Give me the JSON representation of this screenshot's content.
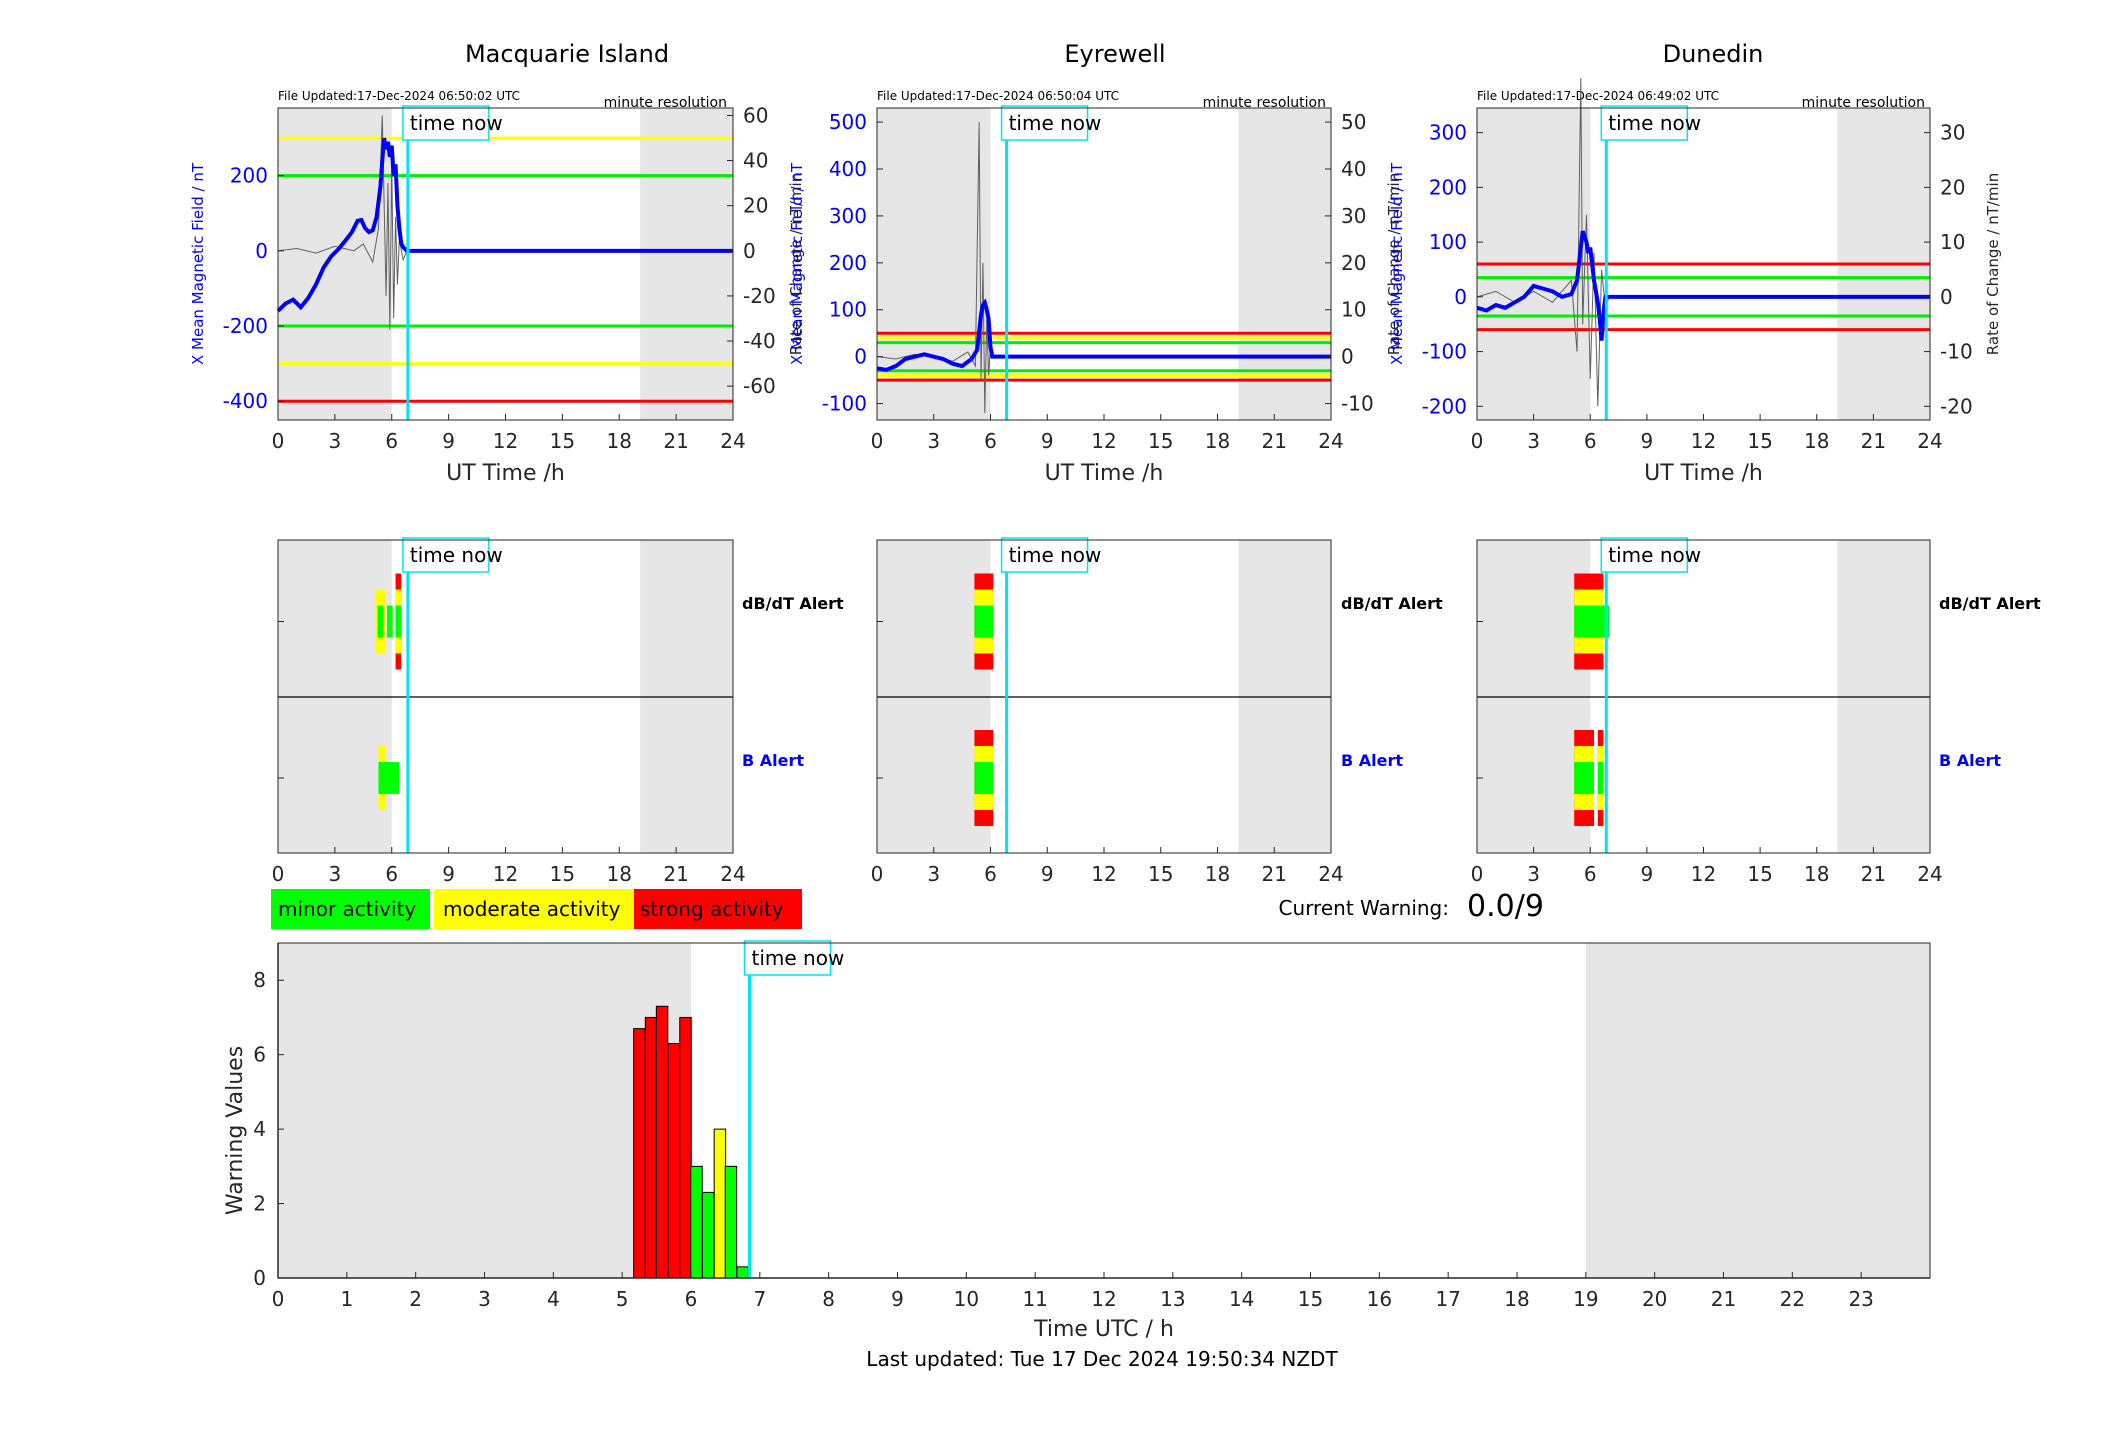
{
  "colors": {
    "night_shade": "#e6e6e6",
    "field_line": "#0000ff",
    "rate_line": "#606060",
    "time_now": "#00e5ee",
    "threshold_red": "#ff0000",
    "threshold_yellow": "#ffff00",
    "threshold_green": "#00ee00",
    "minor": "#00ff00",
    "moderate": "#ffff00",
    "strong": "#ff0000"
  },
  "labels": {
    "time_now": "time now",
    "ut_xlabel": "UT Time /h",
    "left_ylabel": "X Mean Magnetic Field / nT",
    "right_ylabel": "Rate of Change / nT/min",
    "resolution": "minute resolution",
    "dbdt_alert": "dB/dT Alert",
    "b_alert": "B Alert"
  },
  "legend": {
    "minor": "minor activity",
    "moderate": "moderate activity",
    "strong": "strong activity"
  },
  "current_warning": {
    "label": "Current Warning:",
    "value": "0.0/9"
  },
  "footer": {
    "last_updated": "Last updated: Tue 17 Dec 2024 19:50:34 NZDT"
  },
  "chart_data": [
    {
      "type": "line",
      "title": "Macquarie Island",
      "file_updated": "File Updated:17-Dec-2024 06:50:02 UTC",
      "xlabel": "UT Time /h",
      "ylabel": "X Mean Magnetic Field / nT",
      "xlim": [
        0,
        24
      ],
      "xticks": [
        0,
        3,
        6,
        9,
        12,
        15,
        18,
        21,
        24
      ],
      "ylim": [
        -450,
        380
      ],
      "yticks": [
        -400,
        -200,
        0,
        200
      ],
      "ylim_right": [
        -75,
        63.3
      ],
      "yticks_right": [
        -60,
        -40,
        -20,
        0,
        20,
        40,
        60
      ],
      "time_now": 6.85,
      "night_shading": [
        [
          0,
          6
        ],
        [
          19.1,
          24
        ]
      ],
      "thresholds": [
        {
          "value": 300,
          "color": "yellow"
        },
        {
          "value": 200,
          "color": "green"
        },
        {
          "value": -200,
          "color": "green"
        },
        {
          "value": -300,
          "color": "yellow"
        },
        {
          "value": -400,
          "color": "red"
        }
      ],
      "series": [
        {
          "role": "field",
          "x": [
            0,
            0.4,
            0.8,
            1.2,
            1.6,
            2.0,
            2.4,
            2.8,
            3.2,
            3.6,
            3.9,
            4.2,
            4.4,
            4.6,
            4.8,
            5.0,
            5.2,
            5.4,
            5.5,
            5.6,
            5.7,
            5.8,
            5.9,
            6.0,
            6.1,
            6.2,
            6.3,
            6.4,
            6.5,
            6.6,
            6.7,
            6.8,
            7.0,
            24
          ],
          "y": [
            -160,
            -140,
            -130,
            -150,
            -125,
            -90,
            -45,
            -15,
            5,
            30,
            50,
            80,
            82,
            60,
            50,
            55,
            90,
            170,
            240,
            300,
            270,
            290,
            250,
            280,
            200,
            230,
            120,
            60,
            20,
            10,
            5,
            0,
            0,
            0
          ]
        },
        {
          "role": "rate",
          "x": [
            0,
            1,
            2,
            3,
            4,
            4.5,
            5.0,
            5.3,
            5.5,
            5.7,
            5.8,
            5.9,
            6.0,
            6.1,
            6.2,
            6.3,
            6.4,
            6.6,
            6.8,
            7
          ],
          "y": [
            0,
            1,
            -1,
            2,
            0,
            3,
            -5,
            10,
            60,
            -20,
            30,
            -35,
            40,
            -30,
            15,
            -15,
            5,
            -4,
            0,
            0
          ]
        }
      ]
    },
    {
      "type": "line",
      "title": "Eyrewell",
      "file_updated": "File Updated:17-Dec-2024 06:50:04 UTC",
      "xlabel": "UT Time /h",
      "ylabel": "X Mean Magnetic Field / nT",
      "xlim": [
        0,
        24
      ],
      "xticks": [
        0,
        3,
        6,
        9,
        12,
        15,
        18,
        21,
        24
      ],
      "ylim": [
        -135,
        530
      ],
      "yticks": [
        -100,
        0,
        100,
        200,
        300,
        400,
        500
      ],
      "ylim_right": [
        -13.5,
        53
      ],
      "yticks_right": [
        -10,
        0,
        10,
        20,
        30,
        40,
        50
      ],
      "time_now": 6.85,
      "night_shading": [
        [
          0,
          6
        ],
        [
          19.1,
          24
        ]
      ],
      "thresholds": [
        {
          "value": 50,
          "color": "red"
        },
        {
          "value": 40,
          "color": "yellow"
        },
        {
          "value": 30,
          "color": "green"
        },
        {
          "value": -30,
          "color": "green"
        },
        {
          "value": -40,
          "color": "yellow"
        },
        {
          "value": -50,
          "color": "red"
        }
      ],
      "series": [
        {
          "role": "field",
          "x": [
            0,
            0.5,
            1.0,
            1.5,
            2.0,
            2.5,
            3.0,
            3.5,
            4.0,
            4.5,
            5.0,
            5.3,
            5.5,
            5.6,
            5.7,
            5.8,
            5.9,
            6.0,
            6.1,
            24
          ],
          "y": [
            -25,
            -28,
            -20,
            -5,
            0,
            5,
            0,
            -5,
            -15,
            -20,
            -5,
            15,
            90,
            110,
            115,
            100,
            80,
            20,
            0,
            0
          ]
        },
        {
          "role": "rate",
          "x": [
            0,
            1,
            2,
            3,
            4,
            4.8,
            5.2,
            5.4,
            5.5,
            5.6,
            5.7,
            5.8,
            5.9,
            6.0,
            6.2
          ],
          "y": [
            0,
            -0.5,
            0.5,
            0,
            -1,
            1,
            -2,
            50,
            -5,
            20,
            -12,
            8,
            -4,
            2,
            0
          ]
        }
      ]
    },
    {
      "type": "line",
      "title": "Dunedin",
      "file_updated": "File Updated:17-Dec-2024 06:49:02 UTC",
      "xlabel": "UT Time /h",
      "ylabel": "X Mean Magnetic Field / nT",
      "xlim": [
        0,
        24
      ],
      "xticks": [
        0,
        3,
        6,
        9,
        12,
        15,
        18,
        21,
        24
      ],
      "ylim": [
        -225,
        345
      ],
      "yticks": [
        -200,
        -100,
        0,
        100,
        200,
        300
      ],
      "ylim_right": [
        -22.5,
        34.5
      ],
      "yticks_right": [
        -20,
        -10,
        0,
        10,
        20,
        30
      ],
      "time_now": 6.85,
      "night_shading": [
        [
          0,
          6
        ],
        [
          19.1,
          24
        ]
      ],
      "thresholds": [
        {
          "value": 60,
          "color": "red"
        },
        {
          "value": 35,
          "color": "green"
        },
        {
          "value": -35,
          "color": "green"
        },
        {
          "value": -60,
          "color": "red"
        }
      ],
      "series": [
        {
          "role": "field",
          "x": [
            0,
            0.5,
            1.0,
            1.5,
            2.0,
            2.5,
            3.0,
            3.5,
            4.0,
            4.5,
            5.0,
            5.3,
            5.5,
            5.6,
            5.7,
            5.8,
            5.9,
            6.0,
            6.2,
            6.4,
            6.5,
            6.6,
            6.7,
            6.8,
            7.0,
            24
          ],
          "y": [
            -20,
            -25,
            -15,
            -20,
            -10,
            0,
            20,
            15,
            10,
            0,
            5,
            30,
            90,
            120,
            110,
            100,
            80,
            90,
            30,
            -10,
            -40,
            -80,
            -30,
            0,
            0,
            0
          ]
        },
        {
          "role": "rate",
          "x": [
            0,
            1,
            2,
            3,
            4,
            5.0,
            5.3,
            5.5,
            5.6,
            5.8,
            6.0,
            6.2,
            6.4,
            6.6,
            6.8,
            7
          ],
          "y": [
            0,
            1,
            -1,
            1,
            -1,
            3,
            -10,
            40,
            -5,
            15,
            -15,
            8,
            -20,
            5,
            -2,
            0
          ]
        }
      ]
    },
    {
      "type": "bar",
      "panel": "alerts",
      "station": "Macquarie Island",
      "xlim": [
        0,
        24
      ],
      "xticks": [
        0,
        3,
        6,
        9,
        12,
        15,
        18,
        21,
        24
      ],
      "time_now": 6.85,
      "night_shading": [
        [
          0,
          6
        ],
        [
          19.1,
          24
        ]
      ],
      "rows": [
        {
          "label": "dB/dT Alert",
          "blocks": [
            {
              "x0": 5.15,
              "x1": 5.65,
              "level": "moderate"
            },
            {
              "x0": 5.25,
              "x1": 5.55,
              "level": "minor"
            },
            {
              "x0": 5.75,
              "x1": 6.05,
              "level": "minor"
            },
            {
              "x0": 6.2,
              "x1": 6.5,
              "level": "strong"
            },
            {
              "x0": 6.2,
              "x1": 6.5,
              "level": "minor",
              "inner": true
            }
          ]
        },
        {
          "label": "B Alert",
          "blocks": [
            {
              "x0": 5.3,
              "x1": 5.7,
              "level": "moderate"
            },
            {
              "x0": 5.3,
              "x1": 6.4,
              "level": "minor",
              "inner": true
            }
          ]
        }
      ]
    },
    {
      "type": "bar",
      "panel": "alerts",
      "station": "Eyrewell",
      "xlim": [
        0,
        24
      ],
      "xticks": [
        0,
        3,
        6,
        9,
        12,
        15,
        18,
        21,
        24
      ],
      "time_now": 6.85,
      "night_shading": [
        [
          0,
          6
        ],
        [
          19.1,
          24
        ]
      ],
      "rows": [
        {
          "label": "dB/dT Alert",
          "blocks": [
            {
              "x0": 5.15,
              "x1": 6.15,
              "level": "strong"
            }
          ]
        },
        {
          "label": "B Alert",
          "blocks": [
            {
              "x0": 5.15,
              "x1": 6.15,
              "level": "strong"
            }
          ]
        }
      ]
    },
    {
      "type": "bar",
      "panel": "alerts",
      "station": "Dunedin",
      "xlim": [
        0,
        24
      ],
      "xticks": [
        0,
        3,
        6,
        9,
        12,
        15,
        18,
        21,
        24
      ],
      "time_now": 6.85,
      "night_shading": [
        [
          0,
          6
        ],
        [
          19.1,
          24
        ]
      ],
      "rows": [
        {
          "label": "dB/dT Alert",
          "blocks": [
            {
              "x0": 5.15,
              "x1": 6.7,
              "level": "strong"
            },
            {
              "x0": 6.7,
              "x1": 7.0,
              "level": "minor",
              "inner": true
            }
          ]
        },
        {
          "label": "B Alert",
          "blocks": [
            {
              "x0": 5.15,
              "x1": 6.2,
              "level": "strong"
            },
            {
              "x0": 6.4,
              "x1": 6.7,
              "level": "strong"
            }
          ]
        }
      ]
    },
    {
      "type": "bar",
      "panel": "warning",
      "xlabel": "Time UTC / h",
      "ylabel": "Warning Values",
      "xlim": [
        0,
        24
      ],
      "xticks": [
        0,
        1,
        2,
        3,
        4,
        5,
        6,
        7,
        8,
        9,
        10,
        11,
        12,
        13,
        14,
        15,
        16,
        17,
        18,
        19,
        20,
        21,
        22,
        23
      ],
      "ylim": [
        0,
        9
      ],
      "yticks": [
        0,
        2,
        4,
        6,
        8
      ],
      "time_now": 6.85,
      "night_shading": [
        [
          0,
          6
        ],
        [
          19,
          24
        ]
      ],
      "bars": [
        {
          "x": 5.25,
          "value": 6.7,
          "level": "strong"
        },
        {
          "x": 5.42,
          "value": 7.0,
          "level": "strong"
        },
        {
          "x": 5.58,
          "value": 7.3,
          "level": "strong"
        },
        {
          "x": 5.75,
          "value": 6.3,
          "level": "strong"
        },
        {
          "x": 5.92,
          "value": 7.0,
          "level": "strong"
        },
        {
          "x": 6.08,
          "value": 3.0,
          "level": "minor"
        },
        {
          "x": 6.25,
          "value": 2.3,
          "level": "minor"
        },
        {
          "x": 6.42,
          "value": 4.0,
          "level": "moderate"
        },
        {
          "x": 6.58,
          "value": 3.0,
          "level": "minor"
        },
        {
          "x": 6.75,
          "value": 0.3,
          "level": "minor"
        }
      ]
    }
  ]
}
